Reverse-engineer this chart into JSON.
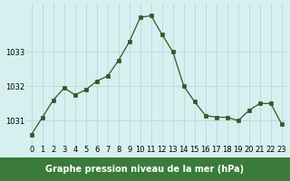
{
  "x": [
    0,
    1,
    2,
    3,
    4,
    5,
    6,
    7,
    8,
    9,
    10,
    11,
    12,
    13,
    14,
    15,
    16,
    17,
    18,
    19,
    20,
    21,
    22,
    23
  ],
  "y": [
    1030.6,
    1031.1,
    1031.6,
    1031.95,
    1031.75,
    1031.9,
    1032.15,
    1032.3,
    1032.75,
    1033.3,
    1034.0,
    1034.05,
    1033.5,
    1033.0,
    1032.0,
    1031.55,
    1031.15,
    1031.1,
    1031.1,
    1031.0,
    1031.3,
    1031.5,
    1031.5,
    1030.9
  ],
  "line_color": "#2d5a27",
  "marker": "s",
  "marker_size": 2.5,
  "bg_color": "#d6f0f0",
  "grid_color": "#b8d8d8",
  "xlabel": "Graphe pression niveau de la mer (hPa)",
  "xlabel_bg": "#3a7a3a",
  "xlabel_color": "white",
  "yticks": [
    1031,
    1032,
    1033
  ],
  "ylim": [
    1030.3,
    1034.4
  ],
  "xlim": [
    -0.5,
    23.5
  ],
  "title_fontsize": 7,
  "tick_fontsize": 6.0
}
